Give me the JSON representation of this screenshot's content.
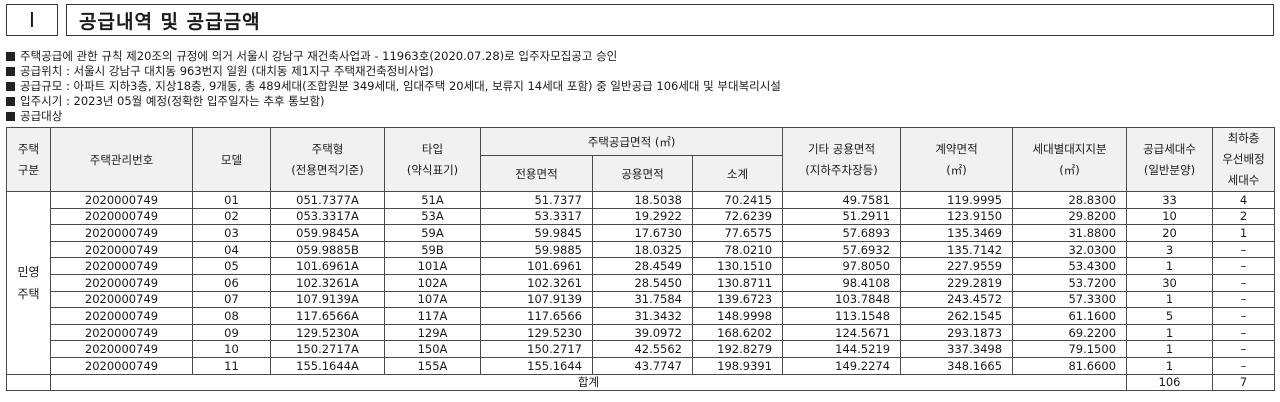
{
  "header": {
    "section_number": "Ⅰ",
    "title": "공급내역 및 공급금액"
  },
  "bullets": [
    "주택공급에 관한 규칙 제20조의 규정에 의거 서울시 강남구 재건축사업과 - 11963호(2020.07.28)로 입주자모집공고 승인",
    "공급위치 : 서울시 강남구 대치동 963번지 일원 (대치동 제1지구 주택재건축정비사업)",
    "공급규모 : 아파트 지하3층, 지상18층, 9개동, 총 489세대(조합원분 349세대, 임대주택 20세대, 보류지 14세대 포함) 중 일반공급 106세대 및 부대복리시설",
    "입주시기 : 2023년 05월 예정(정확한 입주일자는 추후 통보함)",
    "공급대상"
  ],
  "table": {
    "headers": {
      "type_line1": "주택",
      "type_line2": "구분",
      "mgmt_no": "주택관리번호",
      "model": "모델",
      "housing_type_line1": "주택형",
      "housing_type_line2": "(전용면적기준)",
      "tap_line1": "타입",
      "tap_line2": "(약식표기)",
      "area_group": "주택공급면적 (㎡)",
      "exclusive": "전용면적",
      "common": "공용면적",
      "subtotal": "소계",
      "other_common_line1": "기타 공용면적",
      "other_common_line2": "(지하주차장등)",
      "contract_line1": "계약면적",
      "contract_line2": "(㎡)",
      "land_line1": "세대별대지지분",
      "land_line2": "(㎡)",
      "supply_line1": "공급세대수",
      "supply_line2": "(일반분양)",
      "top_line1": "최하층",
      "top_line2": "우선배정",
      "top_line3": "세대수"
    },
    "group_label_line1": "민영",
    "group_label_line2": "주택",
    "rows": [
      {
        "no": "2020000749",
        "model": "01",
        "type": "051.7377A",
        "tap": "51A",
        "exclusive": "51.7377",
        "common": "18.5038",
        "subtotal": "70.2415",
        "other": "49.7581",
        "contract": "119.9995",
        "land": "28.8300",
        "supply": "33",
        "lowest": "4"
      },
      {
        "no": "2020000749",
        "model": "02",
        "type": "053.3317A",
        "tap": "53A",
        "exclusive": "53.3317",
        "common": "19.2922",
        "subtotal": "72.6239",
        "other": "51.2911",
        "contract": "123.9150",
        "land": "29.8200",
        "supply": "10",
        "lowest": "2"
      },
      {
        "no": "2020000749",
        "model": "03",
        "type": "059.9845A",
        "tap": "59A",
        "exclusive": "59.9845",
        "common": "17.6730",
        "subtotal": "77.6575",
        "other": "57.6893",
        "contract": "135.3469",
        "land": "31.8800",
        "supply": "20",
        "lowest": "1"
      },
      {
        "no": "2020000749",
        "model": "04",
        "type": "059.9885B",
        "tap": "59B",
        "exclusive": "59.9885",
        "common": "18.0325",
        "subtotal": "78.0210",
        "other": "57.6932",
        "contract": "135.7142",
        "land": "32.0300",
        "supply": "3",
        "lowest": "–"
      },
      {
        "no": "2020000749",
        "model": "05",
        "type": "101.6961A",
        "tap": "101A",
        "exclusive": "101.6961",
        "common": "28.4549",
        "subtotal": "130.1510",
        "other": "97.8050",
        "contract": "227.9559",
        "land": "53.4300",
        "supply": "1",
        "lowest": "–"
      },
      {
        "no": "2020000749",
        "model": "06",
        "type": "102.3261A",
        "tap": "102A",
        "exclusive": "102.3261",
        "common": "28.5450",
        "subtotal": "130.8711",
        "other": "98.4108",
        "contract": "229.2819",
        "land": "53.7200",
        "supply": "30",
        "lowest": "–"
      },
      {
        "no": "2020000749",
        "model": "07",
        "type": "107.9139A",
        "tap": "107A",
        "exclusive": "107.9139",
        "common": "31.7584",
        "subtotal": "139.6723",
        "other": "103.7848",
        "contract": "243.4572",
        "land": "57.3300",
        "supply": "1",
        "lowest": "–"
      },
      {
        "no": "2020000749",
        "model": "08",
        "type": "117.6566A",
        "tap": "117A",
        "exclusive": "117.6566",
        "common": "31.3432",
        "subtotal": "148.9998",
        "other": "113.1548",
        "contract": "262.1545",
        "land": "61.1600",
        "supply": "5",
        "lowest": "–"
      },
      {
        "no": "2020000749",
        "model": "09",
        "type": "129.5230A",
        "tap": "129A",
        "exclusive": "129.5230",
        "common": "39.0972",
        "subtotal": "168.6202",
        "other": "124.5671",
        "contract": "293.1873",
        "land": "69.2200",
        "supply": "1",
        "lowest": "–"
      },
      {
        "no": "2020000749",
        "model": "10",
        "type": "150.2717A",
        "tap": "150A",
        "exclusive": "150.2717",
        "common": "42.5562",
        "subtotal": "192.8279",
        "other": "144.5219",
        "contract": "337.3498",
        "land": "79.1500",
        "supply": "1",
        "lowest": "–"
      },
      {
        "no": "2020000749",
        "model": "11",
        "type": "155.1644A",
        "tap": "155A",
        "exclusive": "155.1644",
        "common": "43.7747",
        "subtotal": "198.9391",
        "other": "149.2274",
        "contract": "348.1665",
        "land": "81.6600",
        "supply": "1",
        "lowest": "–"
      }
    ],
    "total": {
      "label": "합계",
      "supply": "106",
      "lowest": "7"
    }
  }
}
